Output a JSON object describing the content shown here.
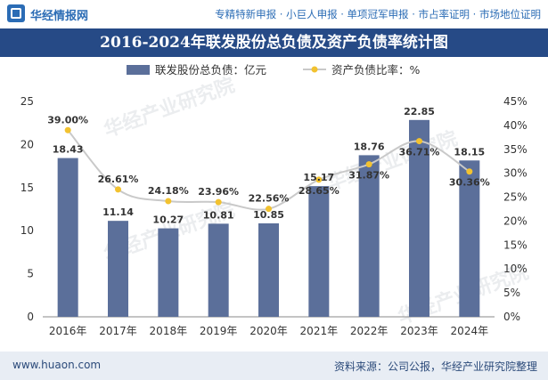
{
  "header": {
    "brand": "华经情报网",
    "tagline": "专精特新申报 · 小巨人申报 · 单项冠军申报 · 市占率证明 · 市场地位证明"
  },
  "title": "2016-2024年联发股份总负债及资产负债率统计图",
  "footer": {
    "site": "www.huaon.com",
    "source": "资料来源：公司公报，华经产业研究院整理"
  },
  "watermark": "华经产业研究院",
  "colors": {
    "bar": "#5b6f9a",
    "line": "#c9c9c9",
    "marker": "#f2c230",
    "title_bg": "#264a86"
  },
  "chart_data": {
    "type": "bar",
    "categories": [
      "2016年",
      "2017年",
      "2018年",
      "2019年",
      "2020年",
      "2021年",
      "2022年",
      "2023年",
      "2024年"
    ],
    "series": [
      {
        "name": "联发股份总负债：亿元",
        "type": "bar",
        "axis": "left",
        "values": [
          18.43,
          11.14,
          10.27,
          10.81,
          10.85,
          15.17,
          18.76,
          22.85,
          18.15
        ],
        "labels": [
          "18.43",
          "11.14",
          "10.27",
          "10.81",
          "10.85",
          "15.17",
          "18.76",
          "22.85",
          "18.15"
        ]
      },
      {
        "name": "资产负债比率：%",
        "type": "line",
        "axis": "right",
        "values": [
          39.0,
          26.61,
          24.18,
          23.96,
          22.56,
          28.65,
          31.87,
          36.71,
          30.36
        ],
        "labels": [
          "39.00%",
          "26.61%",
          "24.18%",
          "23.96%",
          "22.56%",
          "28.65%",
          "31.87%",
          "36.71%",
          "30.36%"
        ]
      }
    ],
    "ylim": [
      0,
      25
    ],
    "yticks": [
      "0",
      "5",
      "10",
      "15",
      "20",
      "25"
    ],
    "y2lim": [
      0,
      45
    ],
    "y2ticks": [
      "0%",
      "5%",
      "10%",
      "15%",
      "20%",
      "25%",
      "30%",
      "35%",
      "40%",
      "45%"
    ],
    "legend": "top-center",
    "grid": false
  }
}
